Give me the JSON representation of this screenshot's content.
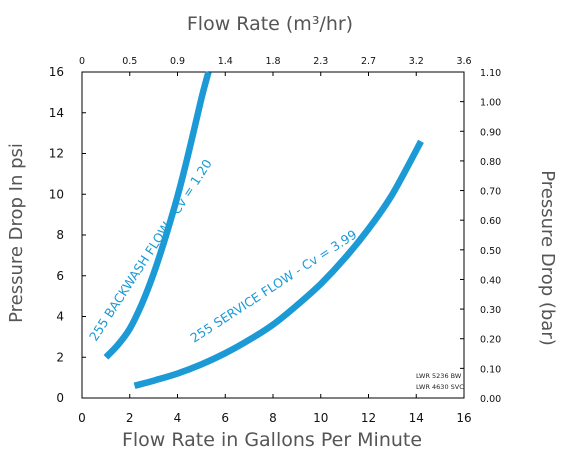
{
  "chart_data": {
    "type": "line",
    "title": "Flow Rate (m³/hr)",
    "xlabel": "Flow Rate in Gallons Per Minute",
    "ylabel": "Pressure Drop In psi",
    "y2label": "Pressure Drop (bar)",
    "xlim": [
      0,
      16
    ],
    "ylim": [
      0,
      16
    ],
    "x_ticks": [
      "0",
      "2",
      "4",
      "6",
      "8",
      "10",
      "12",
      "14",
      "16"
    ],
    "y_ticks": [
      "0",
      "2",
      "4",
      "6",
      "8",
      "10",
      "12",
      "14",
      "16"
    ],
    "top_axis": {
      "label": "Flow Rate (m³/hr)",
      "ticks": [
        "0",
        "0.5",
        "0.9",
        "1.4",
        "1.8",
        "2.3",
        "2.7",
        "3.2",
        "3.6"
      ]
    },
    "right_axis": {
      "label": "Pressure Drop (bar)",
      "ticks": [
        "0.00",
        "0.10",
        "0.20",
        "0.30",
        "0.40",
        "0.50",
        "0.60",
        "0.70",
        "0.80",
        "0.90",
        "1.00",
        "1.10"
      ],
      "values": [
        0.0,
        0.1,
        0.2,
        0.3,
        0.4,
        0.5,
        0.6,
        0.7,
        0.8,
        0.9,
        1.0,
        1.1
      ],
      "max": 1.1
    },
    "series": [
      {
        "name": "255 BACKWASH FLOW - Cv = 1.20",
        "color": "#1b9ad6",
        "x": [
          1.0,
          1.5,
          2.0,
          2.5,
          3.0,
          3.5,
          4.0,
          4.5,
          5.0,
          5.3
        ],
        "y": [
          2.0,
          2.6,
          3.4,
          4.6,
          6.1,
          7.9,
          9.9,
          12.2,
          14.7,
          16.0
        ]
      },
      {
        "name": "255 SERVICE FLOW - Cv = 3.99",
        "color": "#1b9ad6",
        "x": [
          2.2,
          3.0,
          4.0,
          5.0,
          6.0,
          7.0,
          8.0,
          9.0,
          10.0,
          11.0,
          12.0,
          13.0,
          14.2
        ],
        "y": [
          0.6,
          0.85,
          1.2,
          1.65,
          2.2,
          2.85,
          3.6,
          4.55,
          5.6,
          6.85,
          8.3,
          10.0,
          12.6
        ]
      }
    ],
    "annotations": [
      "LWR 5236 BW",
      "LWR 4630 SVC"
    ],
    "grid": false
  }
}
